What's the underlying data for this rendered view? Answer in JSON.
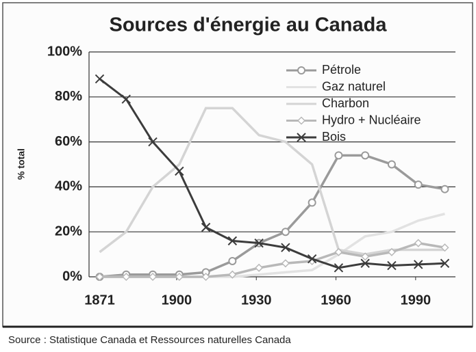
{
  "chart_data": {
    "type": "line",
    "title": "Sources d'énergie au Canada",
    "y_label": "% total",
    "source": "Source : Statistique Canada et Ressources naturelles Canada",
    "x": [
      1871,
      1881,
      1891,
      1901,
      1911,
      1921,
      1931,
      1941,
      1951,
      1961,
      1971,
      1981,
      1991,
      2001
    ],
    "xlim": [
      1867,
      2005
    ],
    "xticks": [
      1871,
      1900,
      1930,
      1960,
      1990
    ],
    "ylim": [
      0,
      100
    ],
    "yticks": [
      {
        "value": 0,
        "label": "0%"
      },
      {
        "value": 20,
        "label": "20%"
      },
      {
        "value": 40,
        "label": "40%"
      },
      {
        "value": 60,
        "label": "60%"
      },
      {
        "value": 80,
        "label": "80%"
      },
      {
        "value": 100,
        "label": "100%"
      }
    ],
    "grid": true,
    "legend": "upper right",
    "series": [
      {
        "name": "Pétrole",
        "color": "#9a9a9a",
        "marker": "circle",
        "values": [
          0,
          1,
          1,
          1,
          2,
          7,
          15,
          20,
          33,
          54,
          54,
          50,
          41,
          39
        ]
      },
      {
        "name": "Gaz naturel",
        "color": "#e2e2e2",
        "marker": "none",
        "values": [
          0,
          0,
          0,
          0,
          0,
          0,
          1,
          2,
          3,
          10,
          18,
          20,
          25,
          28
        ]
      },
      {
        "name": "Charbon",
        "color": "#d4d4d4",
        "marker": "none",
        "values": [
          11,
          20,
          40,
          50,
          75,
          75,
          63,
          60,
          50,
          12,
          10,
          12,
          12,
          12
        ]
      },
      {
        "name": "Hydro + Nucléaire",
        "color": "#b8b8b8",
        "marker": "diamond",
        "values": [
          0,
          0,
          0,
          0,
          0,
          1,
          4,
          6,
          7,
          11,
          9,
          11,
          15,
          13
        ]
      },
      {
        "name": "Bois",
        "color": "#3c3c3c",
        "marker": "x",
        "values": [
          88,
          79,
          60,
          47,
          22,
          16,
          15,
          13,
          8,
          4,
          6,
          5,
          5.5,
          6
        ]
      }
    ]
  }
}
